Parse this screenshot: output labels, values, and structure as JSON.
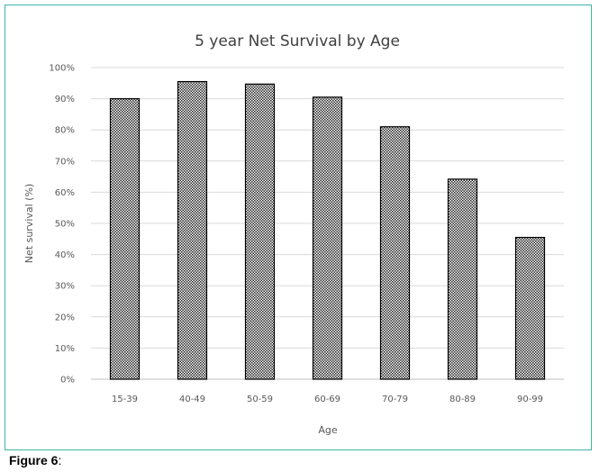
{
  "chart_data": {
    "type": "bar",
    "title": "5 year Net Survival by Age",
    "xlabel": "Age",
    "ylabel": "Net survival (%)",
    "categories": [
      "15-39",
      "40-49",
      "50-59",
      "60-69",
      "70-79",
      "80-89",
      "90-99"
    ],
    "values": [
      90,
      95.5,
      94.7,
      90.5,
      81,
      64.2,
      45.5
    ],
    "ylim": [
      0,
      100
    ],
    "yticks": [
      0,
      10,
      20,
      30,
      40,
      50,
      60,
      70,
      80,
      90,
      100
    ],
    "ytick_format": "%",
    "grid": true,
    "legend": "none",
    "bar_fill": "crosshatch"
  },
  "caption": {
    "label": "Figure 6",
    "suffix": ":"
  },
  "colors": {
    "frame_border": "#3fb3a6",
    "bar_stroke": "#000000",
    "gridline": "#d9d9d9"
  }
}
